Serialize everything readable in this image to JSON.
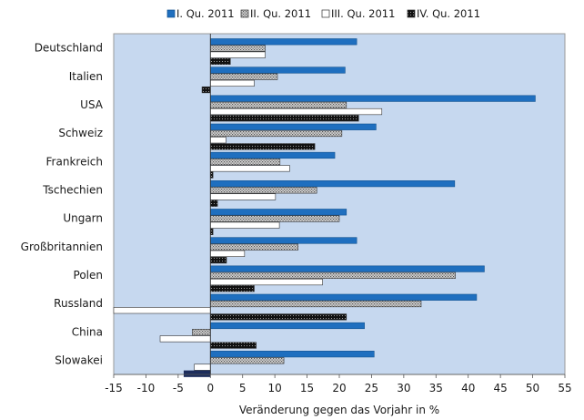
{
  "chart_data": {
    "type": "bar",
    "orientation": "horizontal",
    "categories": [
      "Deutschland",
      "Italien",
      "USA",
      "Schweiz",
      "Frankreich",
      "Tschechien",
      "Ungarn",
      "Großbritannien",
      "Polen",
      "Russland",
      "China",
      "Slowakei"
    ],
    "series": [
      {
        "name": "I. Qu. 2011",
        "color": "#1f6fbf",
        "pattern": "solid",
        "values": [
          22.7,
          20.9,
          50.4,
          25.7,
          19.3,
          37.9,
          21.1,
          22.7,
          42.5,
          41.3,
          23.9,
          25.4
        ]
      },
      {
        "name": "II. Qu. 2011",
        "color": "#9a9a9a",
        "pattern": "crosshatch",
        "values": [
          8.5,
          10.4,
          21.1,
          20.4,
          10.8,
          16.5,
          20.0,
          13.6,
          38.0,
          32.7,
          -2.8,
          11.4
        ]
      },
      {
        "name": "III. Qu. 2011",
        "color": "#ffffff",
        "pattern": "hollow",
        "values": [
          8.5,
          6.8,
          26.6,
          2.4,
          12.3,
          10.1,
          10.7,
          5.3,
          17.4,
          -15.0,
          -7.8,
          -2.5
        ]
      },
      {
        "name": "IV. Qu. 2011",
        "color": "#222222",
        "pattern": "dotted",
        "values": [
          3.1,
          -1.3,
          23.0,
          16.2,
          0.4,
          1.1,
          0.4,
          2.5,
          6.8,
          21.1,
          7.1,
          -4.1
        ]
      }
    ],
    "xlabel": "Veränderung gegen das Vorjahr in %",
    "xticks": [
      -15,
      -10,
      -5,
      0,
      5,
      10,
      15,
      20,
      25,
      30,
      35,
      40,
      45,
      50,
      55
    ],
    "xlim": [
      -15,
      55
    ],
    "grid": false,
    "legend_position": "top",
    "plot_background": "#c6d8ef",
    "special_marks": [
      {
        "category": "Slowakei",
        "series": "IV. Qu. 2011",
        "color": "#1c2d5c"
      }
    ]
  }
}
